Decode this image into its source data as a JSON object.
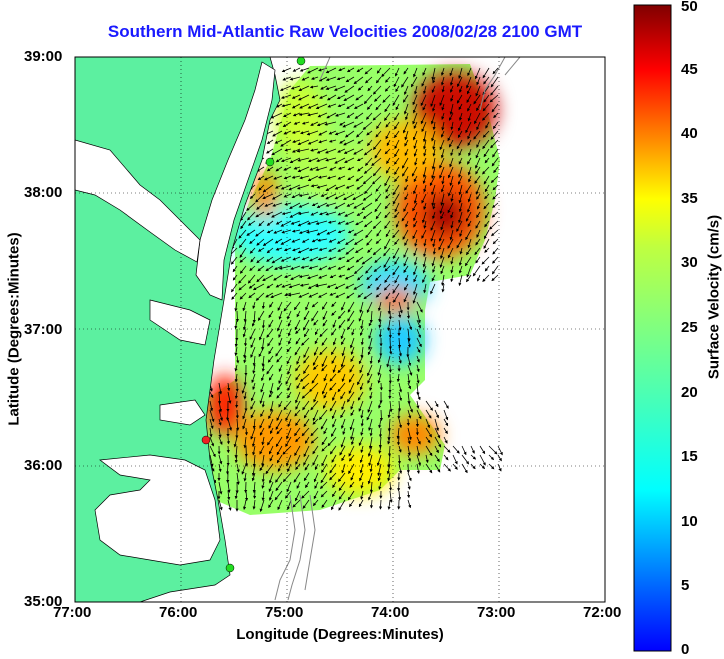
{
  "title": "Southern Mid-Atlantic Raw Velocities 2008/02/28 2100 GMT",
  "xlabel": "Longitude (Degrees:Minutes)",
  "ylabel": "Latitude (Degrees:Minutes)",
  "colorbar_label": "Surface Velocity (cm/s)",
  "x_ticks": [
    "77:00",
    "76:00",
    "75:00",
    "74:00",
    "73:00",
    "72:00"
  ],
  "y_ticks": [
    "39:00",
    "38:00",
    "37:00",
    "36:00",
    "35:00"
  ],
  "colorbar_ticks": [
    "50",
    "45",
    "40",
    "35",
    "30",
    "25",
    "20",
    "15",
    "10",
    "5",
    "0"
  ],
  "colors": {
    "land": "#5cf0a0",
    "water": "#ffffff",
    "title": "#1a1aff",
    "station_green": "#22dd22",
    "station_red": "#ee2222"
  },
  "chart_data": {
    "type": "heatmap",
    "title": "Southern Mid-Atlantic Raw Velocities 2008/02/28 2100 GMT",
    "xlabel": "Longitude (Degrees:Minutes)",
    "ylabel": "Latitude (Degrees:Minutes)",
    "xlim": [
      -77,
      -72
    ],
    "ylim": [
      35,
      39
    ],
    "color_range": [
      0,
      50
    ],
    "colorbar_label": "Surface Velocity (cm/s)",
    "colormap": "jet",
    "grid": true
  }
}
